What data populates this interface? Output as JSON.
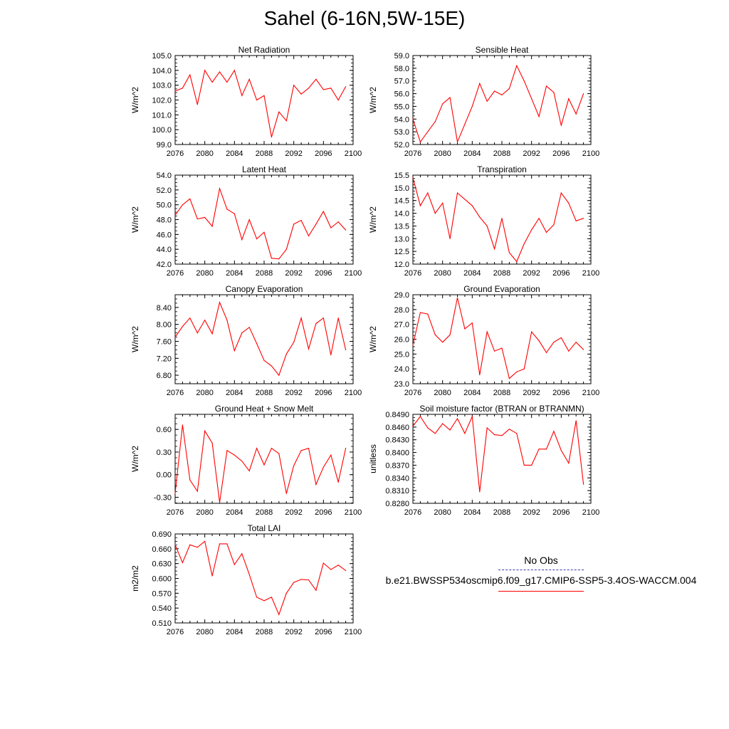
{
  "title": "Sahel (6-16N,5W-15E)",
  "legend": {
    "obs_label": "No Obs",
    "model_label": "b.e21.BWSSP534oscmip6.f09_g17.CMIP6-SSP5-3.4OS-WACCM.004",
    "obs_color": "#3b3bb0",
    "model_color": "#ff0000"
  },
  "chart_data": [
    {
      "type": "line",
      "title": "Net Radiation",
      "ylabel": "W/m^2",
      "xlim": [
        2076,
        2100
      ],
      "ylim": [
        99.0,
        105.0
      ],
      "xticks": [
        "2076",
        "2080",
        "2084",
        "2088",
        "2092",
        "2096",
        "2100"
      ],
      "yticks": [
        "99.0",
        "100.0",
        "101.0",
        "102.0",
        "103.0",
        "104.0",
        "105.0"
      ],
      "x": [
        2076,
        2077,
        2078,
        2079,
        2080,
        2081,
        2082,
        2083,
        2084,
        2085,
        2086,
        2087,
        2088,
        2089,
        2090,
        2091,
        2092,
        2093,
        2094,
        2095,
        2096,
        2097,
        2098,
        2099
      ],
      "y": [
        102.6,
        102.8,
        103.7,
        101.7,
        104.0,
        103.2,
        103.9,
        103.2,
        104.0,
        102.3,
        103.4,
        102.0,
        102.3,
        99.5,
        101.2,
        100.6,
        103.0,
        102.4,
        102.8,
        103.4,
        102.7,
        102.8,
        102.0,
        102.9
      ]
    },
    {
      "type": "line",
      "title": "Sensible Heat",
      "ylabel": "W/m^2",
      "xlim": [
        2076,
        2100
      ],
      "ylim": [
        52.0,
        59.0
      ],
      "xticks": [
        "2076",
        "2080",
        "2084",
        "2088",
        "2092",
        "2096",
        "2100"
      ],
      "yticks": [
        "52.0",
        "53.0",
        "54.0",
        "55.0",
        "56.0",
        "57.0",
        "58.0",
        "59.0"
      ],
      "x": [
        2076,
        2077,
        2078,
        2079,
        2080,
        2081,
        2082,
        2083,
        2084,
        2085,
        2086,
        2087,
        2088,
        2089,
        2090,
        2091,
        2092,
        2093,
        2094,
        2095,
        2096,
        2097,
        2098,
        2099
      ],
      "y": [
        54.0,
        52.2,
        53.0,
        53.8,
        55.2,
        55.7,
        52.2,
        53.6,
        55.0,
        56.8,
        55.4,
        56.2,
        55.9,
        56.4,
        58.2,
        57.0,
        55.6,
        54.2,
        56.6,
        56.1,
        53.5,
        55.6,
        54.4,
        56.0
      ]
    },
    {
      "type": "line",
      "title": "Latent Heat",
      "ylabel": "W/m^2",
      "xlim": [
        2076,
        2100
      ],
      "ylim": [
        42.0,
        54.0
      ],
      "xticks": [
        "2076",
        "2080",
        "2084",
        "2088",
        "2092",
        "2096",
        "2100"
      ],
      "yticks": [
        "42.0",
        "44.0",
        "46.0",
        "48.0",
        "50.0",
        "52.0",
        "54.0"
      ],
      "x": [
        2076,
        2077,
        2078,
        2079,
        2080,
        2081,
        2082,
        2083,
        2084,
        2085,
        2086,
        2087,
        2088,
        2089,
        2090,
        2091,
        2092,
        2093,
        2094,
        2095,
        2096,
        2097,
        2098,
        2099
      ],
      "y": [
        48.6,
        50.0,
        50.8,
        48.1,
        48.3,
        47.1,
        52.2,
        49.4,
        48.8,
        45.3,
        48.0,
        45.4,
        46.3,
        42.8,
        42.7,
        44.0,
        47.4,
        47.9,
        45.8,
        47.4,
        49.1,
        46.9,
        47.7,
        46.6
      ]
    },
    {
      "type": "line",
      "title": "Transpiration",
      "ylabel": "W/m^2",
      "xlim": [
        2076,
        2100
      ],
      "ylim": [
        12.0,
        15.5
      ],
      "xticks": [
        "2076",
        "2080",
        "2084",
        "2088",
        "2092",
        "2096",
        "2100"
      ],
      "yticks": [
        "12.0",
        "12.5",
        "13.0",
        "13.5",
        "14.0",
        "14.5",
        "15.0",
        "15.5"
      ],
      "x": [
        2076,
        2077,
        2078,
        2079,
        2080,
        2081,
        2082,
        2083,
        2084,
        2085,
        2086,
        2087,
        2088,
        2089,
        2090,
        2091,
        2092,
        2093,
        2094,
        2095,
        2096,
        2097,
        2098,
        2099
      ],
      "y": [
        15.4,
        14.3,
        14.8,
        14.0,
        14.4,
        13.0,
        14.8,
        14.55,
        14.3,
        13.85,
        13.5,
        12.6,
        13.8,
        12.45,
        12.1,
        12.8,
        13.35,
        13.8,
        13.25,
        13.55,
        14.8,
        14.4,
        13.7,
        13.8
      ]
    },
    {
      "type": "line",
      "title": "Canopy Evaporation",
      "ylabel": "W/m^2",
      "xlim": [
        2076,
        2100
      ],
      "ylim": [
        6.6,
        8.7
      ],
      "xticks": [
        "2076",
        "2080",
        "2084",
        "2088",
        "2092",
        "2096",
        "2100"
      ],
      "yticks": [
        "6.80",
        "7.20",
        "7.60",
        "8.00",
        "8.40"
      ],
      "x": [
        2076,
        2077,
        2078,
        2079,
        2080,
        2081,
        2082,
        2083,
        2084,
        2085,
        2086,
        2087,
        2088,
        2089,
        2090,
        2091,
        2092,
        2093,
        2094,
        2095,
        2096,
        2097,
        2098,
        2099
      ],
      "y": [
        7.7,
        7.95,
        8.15,
        7.8,
        8.1,
        7.78,
        8.52,
        8.1,
        7.38,
        7.8,
        7.93,
        7.55,
        7.15,
        7.02,
        6.8,
        7.3,
        7.58,
        8.15,
        7.42,
        8.02,
        8.15,
        7.28,
        8.15,
        7.4
      ]
    },
    {
      "type": "line",
      "title": "Ground Evaporation",
      "ylabel": "W/m^2",
      "xlim": [
        2076,
        2100
      ],
      "ylim": [
        23.0,
        29.0
      ],
      "xticks": [
        "2076",
        "2080",
        "2084",
        "2088",
        "2092",
        "2096",
        "2100"
      ],
      "yticks": [
        "23.0",
        "24.0",
        "25.0",
        "26.0",
        "27.0",
        "28.0",
        "29.0"
      ],
      "x": [
        2076,
        2077,
        2078,
        2079,
        2080,
        2081,
        2082,
        2083,
        2084,
        2085,
        2086,
        2087,
        2088,
        2089,
        2090,
        2091,
        2092,
        2093,
        2094,
        2095,
        2096,
        2097,
        2098,
        2099
      ],
      "y": [
        25.6,
        27.8,
        27.7,
        26.3,
        25.8,
        26.3,
        28.8,
        26.7,
        27.1,
        23.6,
        26.5,
        25.2,
        25.4,
        23.35,
        23.8,
        24.0,
        26.5,
        25.9,
        25.1,
        25.8,
        26.1,
        25.2,
        25.8,
        25.3
      ]
    },
    {
      "type": "line",
      "title": "Ground Heat + Snow Melt",
      "ylabel": "W/m^2",
      "xlim": [
        2076,
        2100
      ],
      "ylim": [
        -0.38,
        0.8
      ],
      "xticks": [
        "2076",
        "2080",
        "2084",
        "2088",
        "2092",
        "2096",
        "2100"
      ],
      "yticks": [
        "-0.30",
        "0.00",
        "0.30",
        "0.60"
      ],
      "x": [
        2076,
        2077,
        2078,
        2079,
        2080,
        2081,
        2082,
        2083,
        2084,
        2085,
        2086,
        2087,
        2088,
        2089,
        2090,
        2091,
        2092,
        2093,
        2094,
        2095,
        2096,
        2097,
        2098,
        2099
      ],
      "y": [
        -0.25,
        0.66,
        -0.07,
        -0.22,
        0.58,
        0.42,
        -0.37,
        0.32,
        0.26,
        0.18,
        0.05,
        0.35,
        0.13,
        0.35,
        0.28,
        -0.25,
        0.12,
        0.32,
        0.35,
        -0.13,
        0.1,
        0.26,
        -0.1,
        0.35
      ]
    },
    {
      "type": "line",
      "title": "Soil moisture factor (BTRAN or BTRANMN)",
      "ylabel": "unitless",
      "xlim": [
        2076,
        2100
      ],
      "ylim": [
        0.828,
        0.849
      ],
      "xticks": [
        "2076",
        "2080",
        "2084",
        "2088",
        "2092",
        "2096",
        "2100"
      ],
      "yticks": [
        "0.8280",
        "0.8310",
        "0.8340",
        "0.8370",
        "0.8400",
        "0.8430",
        "0.8460",
        "0.8490"
      ],
      "x": [
        2076,
        2077,
        2078,
        2079,
        2080,
        2081,
        2082,
        2083,
        2084,
        2085,
        2086,
        2087,
        2088,
        2089,
        2090,
        2091,
        2092,
        2093,
        2094,
        2095,
        2096,
        2097,
        2098,
        2099
      ],
      "y": [
        0.8462,
        0.8485,
        0.8458,
        0.8445,
        0.8468,
        0.8453,
        0.848,
        0.8445,
        0.8485,
        0.8307,
        0.8458,
        0.8442,
        0.844,
        0.8455,
        0.8445,
        0.837,
        0.837,
        0.8408,
        0.8408,
        0.845,
        0.8405,
        0.8375,
        0.8475,
        0.8325
      ]
    },
    {
      "type": "line",
      "title": "Total LAI",
      "ylabel": "m2/m2",
      "xlim": [
        2076,
        2100
      ],
      "ylim": [
        0.51,
        0.69
      ],
      "xticks": [
        "2076",
        "2080",
        "2084",
        "2088",
        "2092",
        "2096",
        "2100"
      ],
      "yticks": [
        "0.510",
        "0.540",
        "0.570",
        "0.600",
        "0.630",
        "0.660",
        "0.690"
      ],
      "x": [
        2076,
        2077,
        2078,
        2079,
        2080,
        2081,
        2082,
        2083,
        2084,
        2085,
        2086,
        2087,
        2088,
        2089,
        2090,
        2091,
        2092,
        2093,
        2094,
        2095,
        2096,
        2097,
        2098,
        2099
      ],
      "y": [
        0.668,
        0.632,
        0.668,
        0.663,
        0.675,
        0.605,
        0.67,
        0.67,
        0.628,
        0.65,
        0.608,
        0.562,
        0.555,
        0.562,
        0.527,
        0.57,
        0.592,
        0.598,
        0.597,
        0.576,
        0.631,
        0.618,
        0.627,
        0.616
      ]
    }
  ]
}
